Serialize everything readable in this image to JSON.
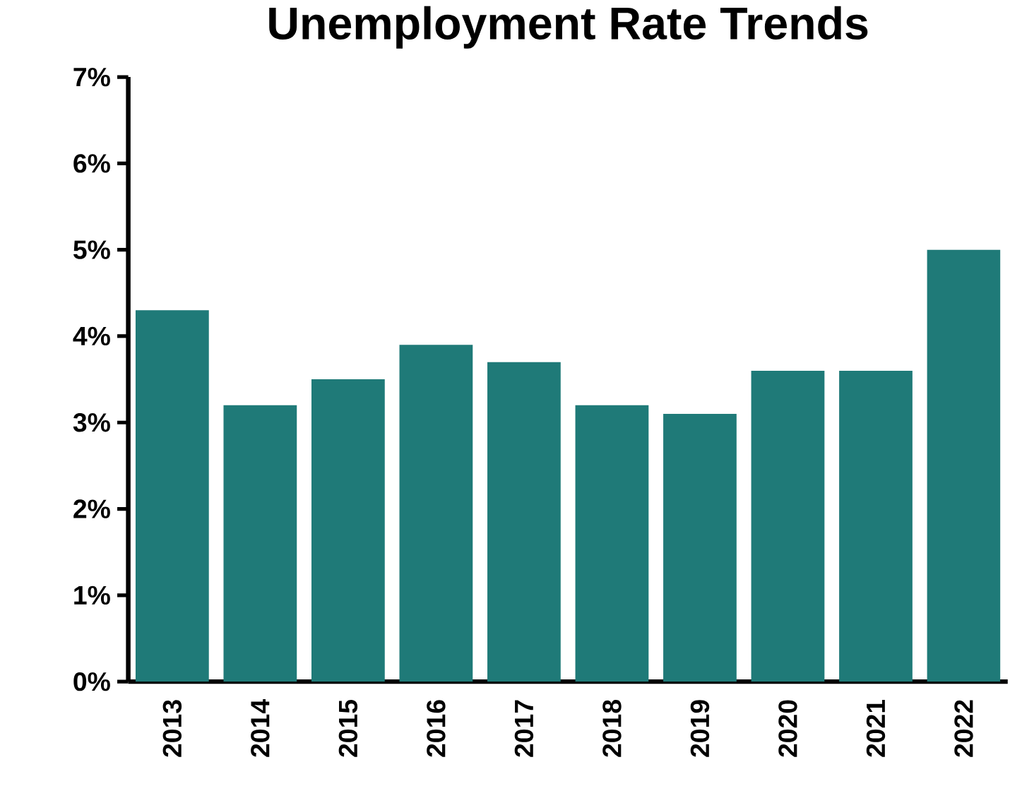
{
  "chart_data": {
    "type": "bar",
    "title": "Unemployment Rate Trends",
    "categories": [
      "2013",
      "2014",
      "2015",
      "2016",
      "2017",
      "2018",
      "2019",
      "2020",
      "2021",
      "2022"
    ],
    "values": [
      4.3,
      3.2,
      3.5,
      3.9,
      3.7,
      3.2,
      3.1,
      3.6,
      3.6,
      5.0
    ],
    "color": "#1f7a78",
    "ylim": [
      0,
      7
    ],
    "yticks": [
      {
        "value": 0,
        "label": "0%"
      },
      {
        "value": 1,
        "label": "1%"
      },
      {
        "value": 2,
        "label": "2%"
      },
      {
        "value": 3,
        "label": "3%"
      },
      {
        "value": 4,
        "label": "4%"
      },
      {
        "value": 5,
        "label": "5%"
      },
      {
        "value": 6,
        "label": "6%"
      },
      {
        "value": 7,
        "label": "7%"
      }
    ],
    "grid": false
  }
}
